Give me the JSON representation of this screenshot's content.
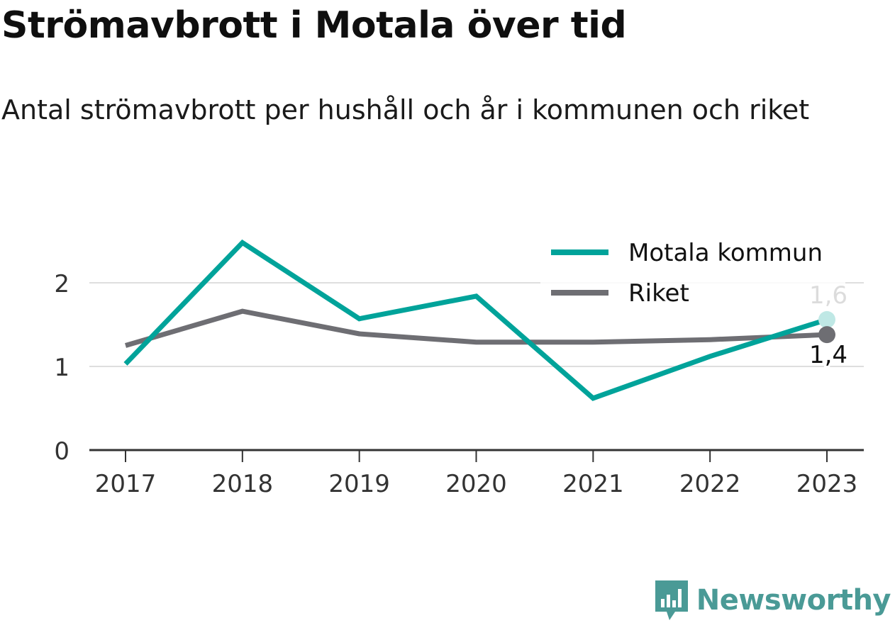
{
  "title": "Strömavbrott i Motala över tid",
  "subtitle": "Antal strömavbrott per hushåll och år i kommunen och riket",
  "brand": {
    "name": "Newsworthy",
    "icon": "newsworthy-logo-icon",
    "color": "#4a9a96"
  },
  "chart_data": {
    "type": "line",
    "categories": [
      "2017",
      "2018",
      "2019",
      "2020",
      "2021",
      "2022",
      "2023"
    ],
    "ylim": [
      0,
      2.6
    ],
    "yticks": [
      0,
      1,
      2
    ],
    "ytick_labels": [
      "0",
      "1",
      "2"
    ],
    "grid": true,
    "legend": "top-right",
    "series": [
      {
        "name": "Motala kommun",
        "color": "#00a39a",
        "values": [
          1.03,
          2.48,
          1.57,
          1.84,
          0.62,
          1.12,
          1.56
        ],
        "end_label": "1,6"
      },
      {
        "name": "Riket",
        "color": "#6e6e73",
        "values": [
          1.25,
          1.66,
          1.39,
          1.29,
          1.29,
          1.32,
          1.38
        ],
        "end_label": "1,4"
      }
    ]
  }
}
